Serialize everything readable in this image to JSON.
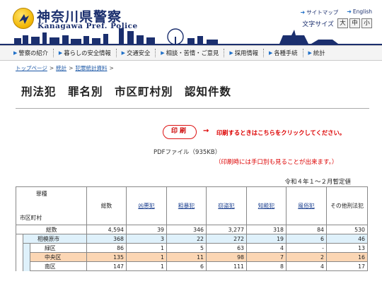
{
  "header": {
    "title": "神奈川県警察",
    "subtitle": "Kanagawa Pref. Police",
    "links": [
      "サイトマップ",
      "English"
    ],
    "font_size_label": "文字サイズ",
    "font_sizes": [
      "大",
      "中",
      "小"
    ]
  },
  "nav": {
    "items": [
      "警察の紹介",
      "暮らしの安全情報",
      "交通安全",
      "相談・苦情・ご意見",
      "採用情報",
      "各種手続",
      "統計"
    ]
  },
  "breadcrumb": [
    "トップページ",
    "統計",
    "犯罪統計資料"
  ],
  "page_title": "刑法犯　罪名別　市区町村別　認知件数",
  "print": {
    "button_label": "印刷",
    "arrow": "→",
    "note": "印刷するときはこちらをクリックしてください。",
    "pdf_label": "PDFファイル（935KB）",
    "pdf_note": "（印刷時には手口別も見ることが出来ます。）"
  },
  "provisional_note": "令和４年１～２月暫定値",
  "table": {
    "corner_top": "罪種",
    "corner_bottom": "市区町村",
    "columns": [
      "総数",
      "凶悪犯",
      "粗暴犯",
      "窃盗犯",
      "知能犯",
      "風俗犯",
      "その他刑法犯"
    ],
    "rows": [
      {
        "label": "総数",
        "values": [
          "4,594",
          "39",
          "346",
          "3,277",
          "318",
          "84",
          "530"
        ]
      },
      {
        "label": "相模原市",
        "values": [
          "368",
          "3",
          "22",
          "272",
          "19",
          "6",
          "46"
        ]
      },
      {
        "label": "緑区",
        "values": [
          "86",
          "1",
          "5",
          "63",
          "4",
          "-",
          "13"
        ]
      },
      {
        "label": "中央区",
        "values": [
          "135",
          "1",
          "11",
          "98",
          "7",
          "2",
          "16"
        ]
      },
      {
        "label": "南区",
        "values": [
          "147",
          "1",
          "6",
          "111",
          "8",
          "4",
          "17"
        ]
      }
    ]
  },
  "colors": {
    "brand_navy": "#1b2f6e",
    "accent_red": "#d00000",
    "city_row_bg": "#dff1fb",
    "highlight_row_bg": "#fbd6b4"
  }
}
